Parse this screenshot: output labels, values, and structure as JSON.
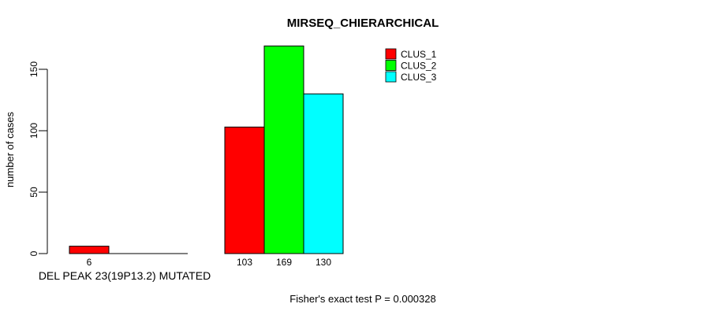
{
  "chart_data": {
    "type": "bar",
    "title": "MIRSEQ_CHIERARCHICAL",
    "ylabel": "number of cases",
    "xlabel": "",
    "group_label": "DEL PEAK 23(19P13.2) MUTATED",
    "footnote": "Fisher's exact test P = 0.000328",
    "categories": [
      "DEL PEAK 23(19P13.2) MUTATED",
      ""
    ],
    "series": [
      {
        "name": "CLUS_1",
        "color": "#ff0000",
        "values": [
          6,
          103
        ]
      },
      {
        "name": "CLUS_2",
        "color": "#00ff00",
        "values": [
          0,
          169
        ]
      },
      {
        "name": "CLUS_3",
        "color": "#00ffff",
        "values": [
          0,
          130
        ]
      }
    ],
    "bar_value_labels": [
      "6",
      "103",
      "169",
      "130"
    ],
    "yticks": [
      0,
      50,
      100,
      150
    ],
    "ylim": [
      0,
      169
    ],
    "grid": false,
    "legend": {
      "position": "top-right",
      "entries": [
        {
          "label": "CLUS_1",
          "color": "#ff0000"
        },
        {
          "label": "CLUS_2",
          "color": "#00ff00"
        },
        {
          "label": "CLUS_3",
          "color": "#00ffff"
        }
      ]
    },
    "colors": {
      "bar_border": "#000000",
      "axis": "#000000",
      "text": "#000000",
      "background": "#ffffff"
    }
  }
}
